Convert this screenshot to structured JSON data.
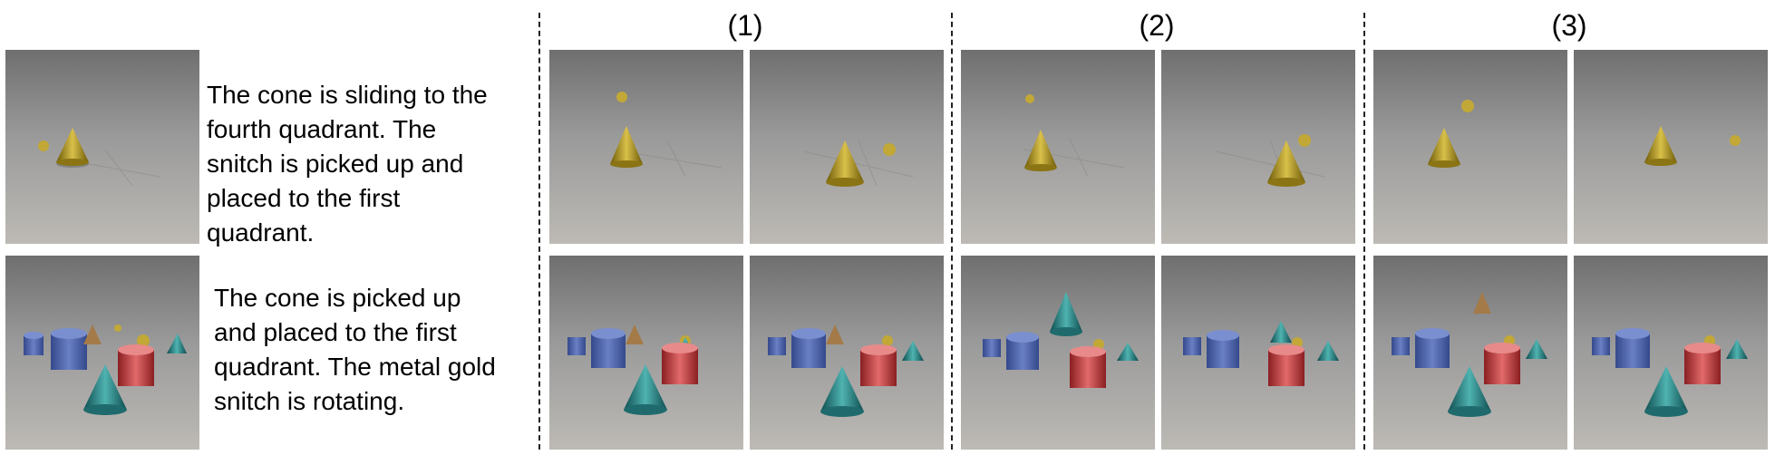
{
  "column_headers": [
    "(1)",
    "(2)",
    "(3)"
  ],
  "rows": [
    {
      "caption": "The cone is sliding to the\nfourth quadrant. The\nsnitch is picked up and\nplaced to the first\nquadrant."
    },
    {
      "caption": "The cone is picked up\nand placed to the first\nquadrant. The metal gold\nsnitch is rotating."
    }
  ],
  "colors": {
    "gold": "#b39a1c",
    "teal": "#2a8a8a",
    "blue": "#4e64a8",
    "red": "#c43a3a",
    "brown": "#a47a48",
    "floor_top": "#7a7a7a",
    "floor_bottom": "#b8b8b8"
  }
}
